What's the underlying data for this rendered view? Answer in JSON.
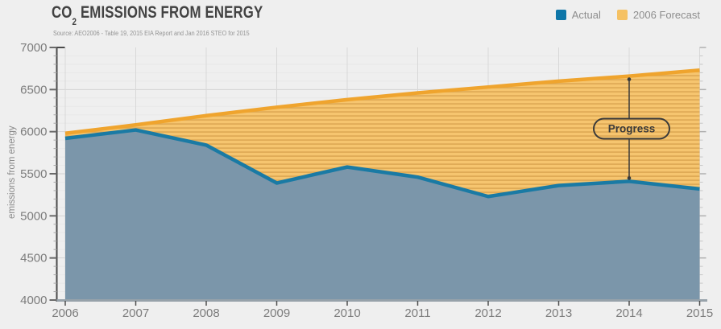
{
  "header": {
    "title_co": "CO",
    "title_sub": "2",
    "title_rest": " EMISSIONS FROM ENERGY",
    "source": "Source: AEO2006 - Table 19, 2015 EIA Report and Jan 2016 STEO for 2015"
  },
  "legend": [
    {
      "label": "Actual",
      "color": "#0e76a8"
    },
    {
      "label": "2006 Forecast",
      "color": "#f5c163"
    }
  ],
  "chart_data": {
    "type": "area",
    "title": "CO2 Emissions from Energy",
    "ylabel": "emissions from energy",
    "x": [
      2006,
      2007,
      2008,
      2009,
      2010,
      2011,
      2012,
      2013,
      2014,
      2015
    ],
    "series": [
      {
        "name": "Actual",
        "values": [
          5920,
          6020,
          5840,
          5390,
          5580,
          5460,
          5230,
          5360,
          5410,
          5320
        ],
        "line_color": "#1a7aa4",
        "fill_color": "#7b96aa"
      },
      {
        "name": "2006 Forecast",
        "values": [
          5980,
          6080,
          6190,
          6290,
          6380,
          6460,
          6530,
          6600,
          6660,
          6730
        ],
        "line_color": "#efa42e",
        "fill_color": "#f6c56f",
        "stripe_color": "#dda853"
      }
    ],
    "ylim": [
      4000,
      7000
    ],
    "ytick_major": 500,
    "ytick_minor": 100,
    "grid": true,
    "legend_position": "top-right",
    "annotation": {
      "label": "Progress",
      "x": 2014
    }
  },
  "colors": {
    "background": "#efefef",
    "grid_major": "#d2d2d2",
    "grid_minor": "#e8e8e8",
    "grid_vertical": "#d8d8d8",
    "axis_dark": "#4a4a4a",
    "axis_bottom": "#97a2aa",
    "tick_label": "#7c7c7c",
    "annotation": "#3a3a3a"
  }
}
